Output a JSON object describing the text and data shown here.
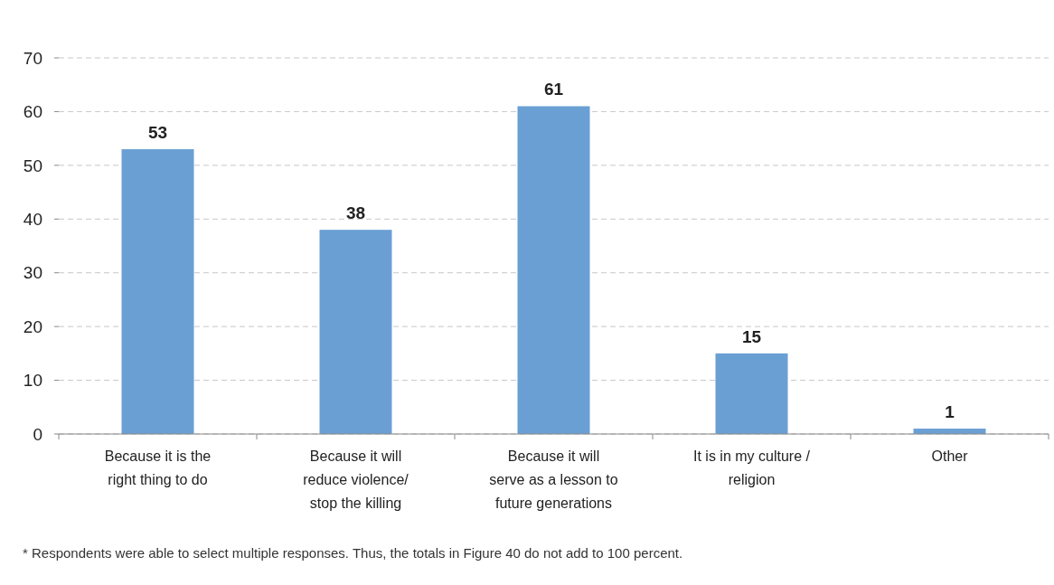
{
  "chart_data": {
    "type": "bar",
    "categories": [
      "Because it is the\nright thing to do",
      "Because it will\nreduce violence/\nstop the killing",
      "Because it will\nserve as a lesson to\nfuture generations",
      "It is in my culture /\nreligion",
      "Other"
    ],
    "values": [
      53,
      38,
      61,
      15,
      1
    ],
    "color": "#6a9fd4",
    "data_labels": true,
    "ylim": [
      0,
      70
    ],
    "yticks": [
      0,
      10,
      20,
      30,
      40,
      50,
      60,
      70
    ],
    "grid": "y",
    "annotations": [
      "* Respondents were able to select multiple responses. Thus, the totals in Figure 40 do not add to 100 percent."
    ]
  }
}
